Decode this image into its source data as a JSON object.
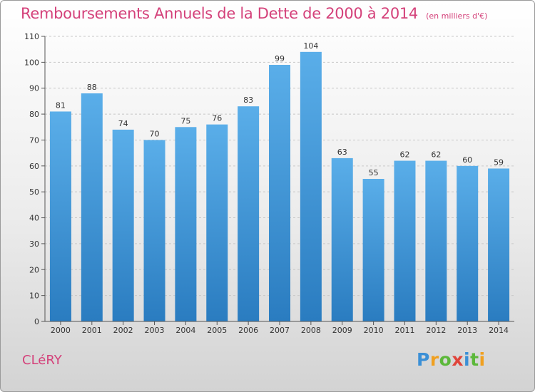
{
  "chart_data": {
    "type": "bar",
    "title": "Remboursements Annuels de la Dette de 2000 à 2014",
    "unit_label": "(en milliers d'€)",
    "categories": [
      "2000",
      "2001",
      "2002",
      "2003",
      "2004",
      "2005",
      "2006",
      "2007",
      "2008",
      "2009",
      "2010",
      "2011",
      "2012",
      "2013",
      "2014"
    ],
    "values": [
      81,
      88,
      74,
      70,
      75,
      76,
      83,
      99,
      104,
      63,
      55,
      62,
      62,
      60,
      59
    ],
    "ylim": [
      0,
      110
    ],
    "yticks": [
      0,
      10,
      20,
      30,
      40,
      50,
      60,
      70,
      80,
      90,
      100,
      110
    ],
    "grid": true,
    "bar_color_top": "#5aaee9",
    "bar_color_bottom": "#2a7cc0",
    "title_color": "#d4417a"
  },
  "commune": "CLéRY",
  "logo": {
    "letters": [
      "P",
      "r",
      "o",
      "x",
      "i",
      "t",
      "i"
    ],
    "colors": [
      "#3a8fd6",
      "#f0a020",
      "#5cb83a",
      "#e0443a",
      "#3a8fd6",
      "#5cb83a",
      "#f0a020"
    ]
  }
}
